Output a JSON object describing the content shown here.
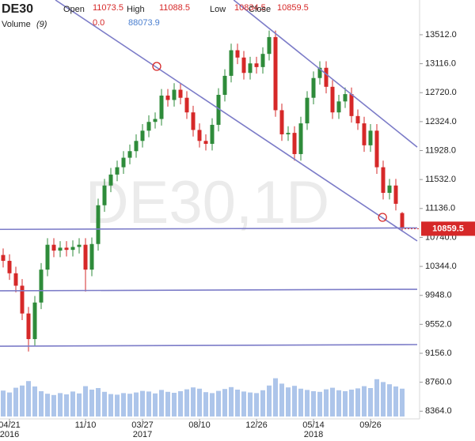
{
  "chart_data": {
    "type": "candlestick",
    "title": "DE30",
    "watermark": "DE30,1D",
    "header_labels": {
      "open": "Open",
      "high": "High",
      "low": "Low",
      "close": "Close",
      "volume": "Volume",
      "volume_period": "(9)"
    },
    "volume_change": {
      "value": 0,
      "label": "0.0"
    },
    "up_color": "#2e8b3a",
    "down_color": "#d62828",
    "volume_color": "#4a7fd0",
    "line_color": "#7c7cc8",
    "marker_color": "#d62828",
    "ylim": [
      8259,
      13987
    ],
    "yticks": [
      {
        "value": 8364,
        "label": "8364.0"
      },
      {
        "value": 8760,
        "label": "8760.0"
      },
      {
        "value": 9156,
        "label": "9156.0"
      },
      {
        "value": 9552,
        "label": "9552.0"
      },
      {
        "value": 9948,
        "label": "9948.0"
      },
      {
        "value": 10344,
        "label": "10344.0"
      },
      {
        "value": 10740,
        "label": "10740.0"
      },
      {
        "value": 11136,
        "label": "11136.0"
      },
      {
        "value": 11532,
        "label": "11532.0"
      },
      {
        "value": 11928,
        "label": "11928.0"
      },
      {
        "value": 12324,
        "label": "12324.0"
      },
      {
        "value": 12720,
        "label": "12720.0"
      },
      {
        "value": 13116,
        "label": "13116.0"
      },
      {
        "value": 13512,
        "label": "13512.0"
      }
    ],
    "xticks": [
      {
        "value": 1,
        "label": "04/21",
        "year": "2016"
      },
      {
        "value": 13,
        "label": "11/10"
      },
      {
        "value": 22,
        "label": "03/27",
        "year": "2017"
      },
      {
        "value": 31,
        "label": "08/10"
      },
      {
        "value": 40,
        "label": "12/26"
      },
      {
        "value": 49,
        "label": "05/14",
        "year": "2018"
      },
      {
        "value": 58,
        "label": "09/26"
      }
    ],
    "open": [
      10500,
      10420,
      10250,
      10080,
      9700,
      9350,
      9850,
      10300,
      10640,
      10560,
      10600,
      10570,
      10610,
      10640,
      10300,
      10650,
      11180,
      11450,
      11600,
      11700,
      11830,
      11920,
      12060,
      12200,
      12320,
      12360,
      12680,
      12620,
      12760,
      12650,
      12450,
      12210,
      12060,
      12020,
      12280,
      12690,
      12950,
      13300,
      13200,
      12990,
      13120,
      13070,
      13250,
      13480,
      12480,
      12150,
      12170,
      11880,
      12300,
      12650,
      12920,
      13060,
      12800,
      12450,
      12600,
      12700,
      12400,
      12300,
      12000,
      12200,
      11700,
      11350,
      11450,
      11073.5
    ],
    "high": [
      10590,
      10510,
      10340,
      10170,
      9790,
      9940,
      10390,
      10730,
      10730,
      10690,
      10690,
      10700,
      10730,
      10730,
      10740,
      11270,
      11540,
      11690,
      11790,
      11920,
      12010,
      12150,
      12290,
      12410,
      12450,
      12770,
      12770,
      12850,
      12850,
      12740,
      12540,
      12300,
      12150,
      12370,
      12780,
      13040,
      13390,
      13390,
      13290,
      13210,
      13210,
      13340,
      13570,
      13570,
      12570,
      12260,
      12260,
      12390,
      12740,
      13010,
      13150,
      13150,
      12890,
      12690,
      12790,
      12790,
      12490,
      12390,
      12290,
      12290,
      11790,
      11540,
      11540,
      11088.5
    ],
    "low": [
      10330,
      10160,
      9990,
      9610,
      9180,
      9260,
      9760,
      10210,
      10470,
      10470,
      10480,
      10480,
      10520,
      10000,
      10210,
      10560,
      11090,
      11360,
      11510,
      11610,
      11740,
      11830,
      11970,
      12110,
      12230,
      12270,
      12530,
      12530,
      12560,
      12360,
      12120,
      11970,
      11930,
      11930,
      12190,
      12600,
      12860,
      13110,
      12900,
      12900,
      12980,
      12980,
      13160,
      12390,
      12060,
      12060,
      11790,
      11790,
      12210,
      12560,
      12830,
      12710,
      12360,
      12360,
      12510,
      12310,
      12210,
      11910,
      11910,
      11610,
      11260,
      11260,
      11110,
      10834.5
    ],
    "close": [
      10420,
      10250,
      10080,
      9700,
      9350,
      9850,
      10300,
      10640,
      10560,
      10600,
      10570,
      10610,
      10640,
      10300,
      10650,
      11180,
      11450,
      11600,
      11700,
      11830,
      11920,
      12060,
      12200,
      12320,
      12360,
      12680,
      12620,
      12760,
      12650,
      12450,
      12210,
      12060,
      12020,
      12280,
      12690,
      12950,
      13300,
      13200,
      12990,
      13120,
      13070,
      13250,
      13480,
      12480,
      12150,
      12170,
      11880,
      12300,
      12650,
      12920,
      13060,
      12800,
      12450,
      12600,
      12700,
      12400,
      12300,
      12000,
      12200,
      11700,
      11350,
      11450,
      11200,
      10859.5
    ],
    "volume": [
      82000,
      76000,
      91000,
      98000,
      112000,
      95000,
      80000,
      72000,
      68000,
      74000,
      70000,
      79000,
      73000,
      96000,
      85000,
      90000,
      78000,
      71000,
      69000,
      74000,
      72000,
      76000,
      81000,
      79000,
      73000,
      84000,
      78000,
      75000,
      80000,
      86000,
      92000,
      88000,
      77000,
      74000,
      81000,
      87000,
      93000,
      85000,
      79000,
      76000,
      74000,
      83000,
      98000,
      121000,
      104000,
      92000,
      97000,
      88000,
      84000,
      80000,
      78000,
      86000,
      91000,
      83000,
      80000,
      85000,
      89000,
      96000,
      90000,
      118000,
      109000,
      102000,
      95000,
      88073.9
    ],
    "vlim": [
      0,
      150000
    ],
    "trendlines": [
      [
        [
          8.25,
          13987
        ],
        [
          65.375,
          10692
        ]
      ],
      [
        [
          36.4,
          13987
        ],
        [
          65.375,
          11976
        ]
      ],
      [
        [
          -0.5,
          10850
        ],
        [
          65.375,
          10870
        ]
      ],
      [
        [
          -0.5,
          10010
        ],
        [
          65.375,
          10031
        ]
      ],
      [
        [
          -0.5,
          9253
        ],
        [
          65.375,
          9275
        ]
      ]
    ],
    "markers": [
      [
        24.25,
        13079
      ],
      [
        59.9,
        11015
      ]
    ]
  }
}
